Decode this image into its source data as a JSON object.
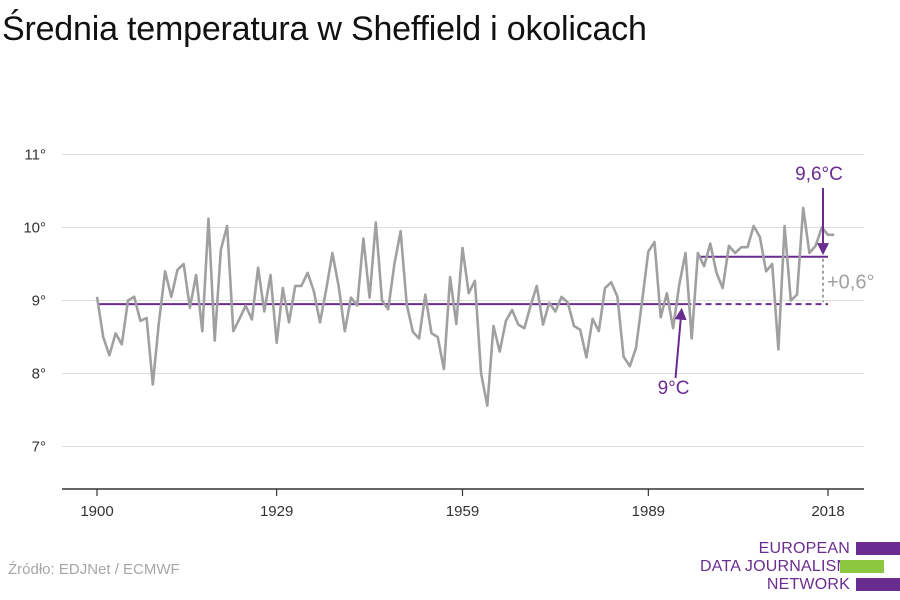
{
  "title": "Średnia temperatura w Sheffield i okolicach",
  "source": "Źródło: EDJNet / ECMWF",
  "logo": {
    "lines": [
      "EUROPEAN",
      "DATA JOURNALISM",
      "NETWORK"
    ],
    "colors": [
      "#6b2c91",
      "#8dc63f",
      "#6b2c91"
    ]
  },
  "chart_data": {
    "type": "line",
    "xlim": [
      1900,
      2018
    ],
    "ylim": [
      6.5,
      11.5
    ],
    "y_ticks": [
      7,
      8,
      9,
      10,
      11
    ],
    "y_tick_labels": [
      "7°",
      "8°",
      "9°",
      "10°",
      "11°"
    ],
    "x_ticks": [
      1900,
      1929,
      1959,
      1989,
      2018
    ],
    "x_tick_labels": [
      "1900",
      "1929",
      "1959",
      "1989",
      "2018"
    ],
    "grid": true,
    "colors": {
      "series": "#a0a0a0",
      "reference": "#6b2c91",
      "grid": "#dddddd",
      "axis": "#333333"
    },
    "x": [
      1900,
      1901,
      1902,
      1903,
      1904,
      1905,
      1906,
      1907,
      1908,
      1909,
      1910,
      1911,
      1912,
      1913,
      1914,
      1915,
      1916,
      1917,
      1918,
      1919,
      1920,
      1921,
      1922,
      1923,
      1924,
      1925,
      1926,
      1927,
      1928,
      1929,
      1930,
      1931,
      1932,
      1933,
      1934,
      1935,
      1936,
      1937,
      1938,
      1939,
      1940,
      1941,
      1942,
      1943,
      1944,
      1945,
      1946,
      1947,
      1948,
      1949,
      1950,
      1951,
      1952,
      1953,
      1954,
      1955,
      1956,
      1957,
      1958,
      1959,
      1960,
      1961,
      1962,
      1963,
      1964,
      1965,
      1966,
      1967,
      1968,
      1969,
      1970,
      1971,
      1972,
      1973,
      1974,
      1975,
      1976,
      1977,
      1978,
      1979,
      1980,
      1981,
      1982,
      1983,
      1984,
      1985,
      1986,
      1987,
      1988,
      1989,
      1990,
      1991,
      1992,
      1993,
      1994,
      1995,
      1996,
      1997,
      1998,
      1999,
      2000,
      2001,
      2002,
      2003,
      2004,
      2005,
      2006,
      2007,
      2008,
      2009,
      2010,
      2011,
      2012,
      2013,
      2014,
      2015,
      2016,
      2017,
      2018,
      2019
    ],
    "series": [
      {
        "values": [
          9.05,
          8.5,
          8.25,
          8.55,
          8.4,
          9.0,
          9.05,
          8.72,
          8.76,
          7.85,
          8.7,
          9.4,
          9.05,
          9.42,
          9.5,
          8.9,
          9.35,
          8.58,
          10.12,
          8.45,
          9.7,
          10.02,
          8.58,
          8.75,
          8.93,
          8.74,
          9.45,
          8.85,
          9.35,
          8.42,
          9.17,
          8.7,
          9.2,
          9.2,
          9.38,
          9.13,
          8.7,
          9.15,
          9.65,
          9.2,
          8.58,
          9.04,
          8.93,
          9.85,
          9.04,
          10.07,
          9.0,
          8.88,
          9.5,
          9.95,
          8.95,
          8.57,
          8.48,
          9.08,
          8.55,
          8.5,
          8.06,
          9.32,
          8.68,
          9.72,
          9.1,
          9.27,
          8.0,
          7.56,
          8.65,
          8.3,
          8.72,
          8.87,
          8.67,
          8.62,
          8.93,
          9.2,
          8.67,
          8.97,
          8.85,
          9.05,
          8.97,
          8.65,
          8.6,
          8.22,
          8.75,
          8.58,
          9.17,
          9.25,
          9.05,
          8.23,
          8.1,
          8.35,
          9.0,
          9.67,
          9.8,
          8.77,
          9.1,
          8.62,
          9.22,
          9.65,
          8.48,
          9.65,
          9.47,
          9.78,
          9.38,
          9.17,
          9.75,
          9.65,
          9.73,
          9.73,
          10.02,
          9.87,
          9.4,
          9.5,
          8.33,
          10.02,
          9.0,
          9.08,
          10.27,
          9.65,
          9.75,
          10.0,
          9.9,
          9.9
        ]
      }
    ],
    "reference_lines": [
      {
        "from": 1900,
        "to": 1995,
        "value": 8.95,
        "dashed_to": 2018,
        "label": "9°C"
      },
      {
        "from": 1997,
        "to": 2018,
        "value": 9.6,
        "label": "9,6°C"
      }
    ],
    "difference_label": "+0,6°"
  }
}
